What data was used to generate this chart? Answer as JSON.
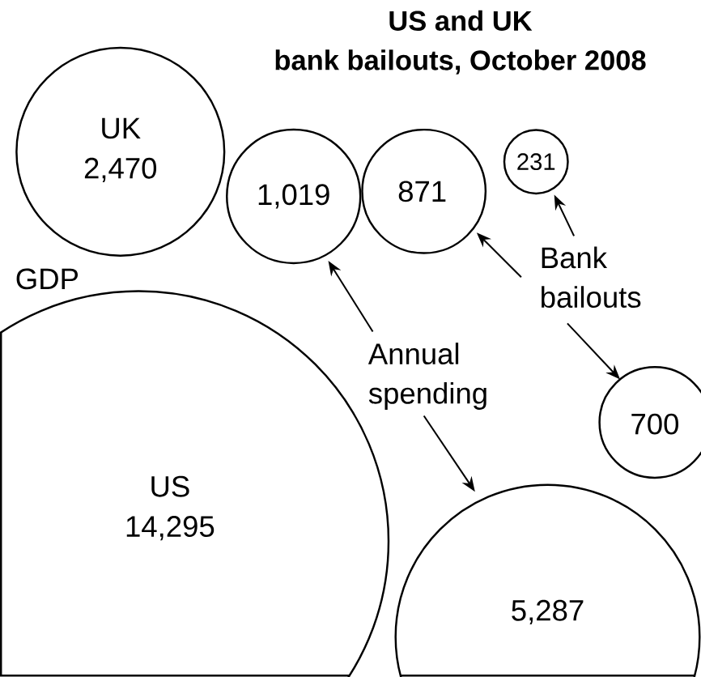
{
  "chart_data": {
    "type": "other",
    "title": "US and UK bank bailouts, October 2008",
    "categories": [
      "UK",
      "US"
    ],
    "series": [
      {
        "name": "GDP",
        "color": "#000000",
        "values": [
          2470,
          14295
        ],
        "value_labels": [
          "2,470",
          "14,295"
        ]
      },
      {
        "name": "Annual spending",
        "color": "#000000",
        "values": [
          1019,
          5287
        ],
        "value_labels": [
          "1,019",
          "5,287"
        ]
      },
      {
        "name": "Bank bailouts",
        "color": "#000000",
        "values": [
          871,
          700
        ],
        "value_labels": [
          "871",
          "700"
        ]
      },
      {
        "color": "#000000",
        "values": [
          231,
          null
        ],
        "value_labels": [
          "231",
          null
        ]
      }
    ],
    "legend": "right"
  }
}
